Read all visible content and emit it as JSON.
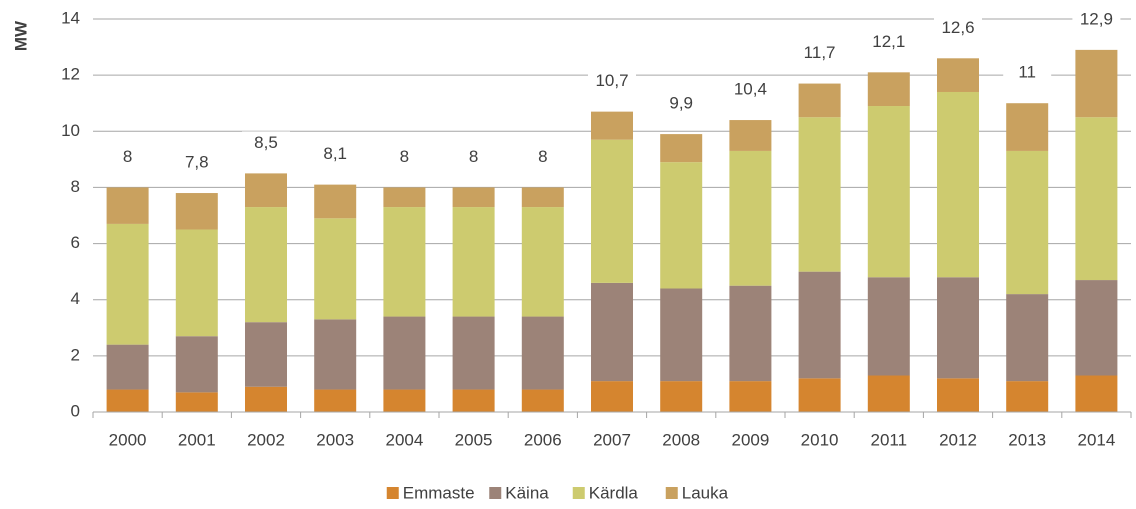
{
  "chart_data": {
    "type": "stacked_bar",
    "y_label": "MW",
    "categories": [
      "2000",
      "2001",
      "2002",
      "2003",
      "2004",
      "2005",
      "2006",
      "2007",
      "2008",
      "2009",
      "2010",
      "2011",
      "2012",
      "2013",
      "2014"
    ],
    "series": [
      {
        "name": "Emmaste",
        "color": "#d5852f",
        "values": [
          0.8,
          0.7,
          0.9,
          0.8,
          0.8,
          0.8,
          0.8,
          1.1,
          1.1,
          1.1,
          1.2,
          1.3,
          1.2,
          1.1,
          1.3
        ]
      },
      {
        "name": "Käina",
        "color": "#9c8378",
        "values": [
          1.6,
          2.0,
          2.3,
          2.5,
          2.6,
          2.6,
          2.6,
          3.5,
          3.3,
          3.4,
          3.8,
          3.5,
          3.6,
          3.1,
          3.4
        ]
      },
      {
        "name": "Kärdla",
        "color": "#cdcb6f",
        "values": [
          4.3,
          3.8,
          4.1,
          3.6,
          3.9,
          3.9,
          3.9,
          5.1,
          4.5,
          4.8,
          5.5,
          6.1,
          6.6,
          5.1,
          5.8
        ]
      },
      {
        "name": "Lauka",
        "color": "#c9a15f",
        "values": [
          1.3,
          1.3,
          1.2,
          1.2,
          0.7,
          0.7,
          0.7,
          1.0,
          1.0,
          1.1,
          1.2,
          1.2,
          1.2,
          1.7,
          2.4
        ]
      }
    ],
    "totals": [
      8,
      7.8,
      8.5,
      8.1,
      8,
      8,
      8,
      10.7,
      9.9,
      10.4,
      11.7,
      12.1,
      12.6,
      11,
      12.9
    ],
    "total_labels": [
      "8",
      "7,8",
      "8,5",
      "8,1",
      "8",
      "8",
      "8",
      "10,7",
      "9,9",
      "10,4",
      "11,7",
      "12,1",
      "12,6",
      "11",
      "12,9"
    ],
    "ylim": [
      0,
      14
    ],
    "yticks": [
      0,
      2,
      4,
      6,
      8,
      10,
      12,
      14
    ],
    "grid": true,
    "legend": "bottom"
  }
}
